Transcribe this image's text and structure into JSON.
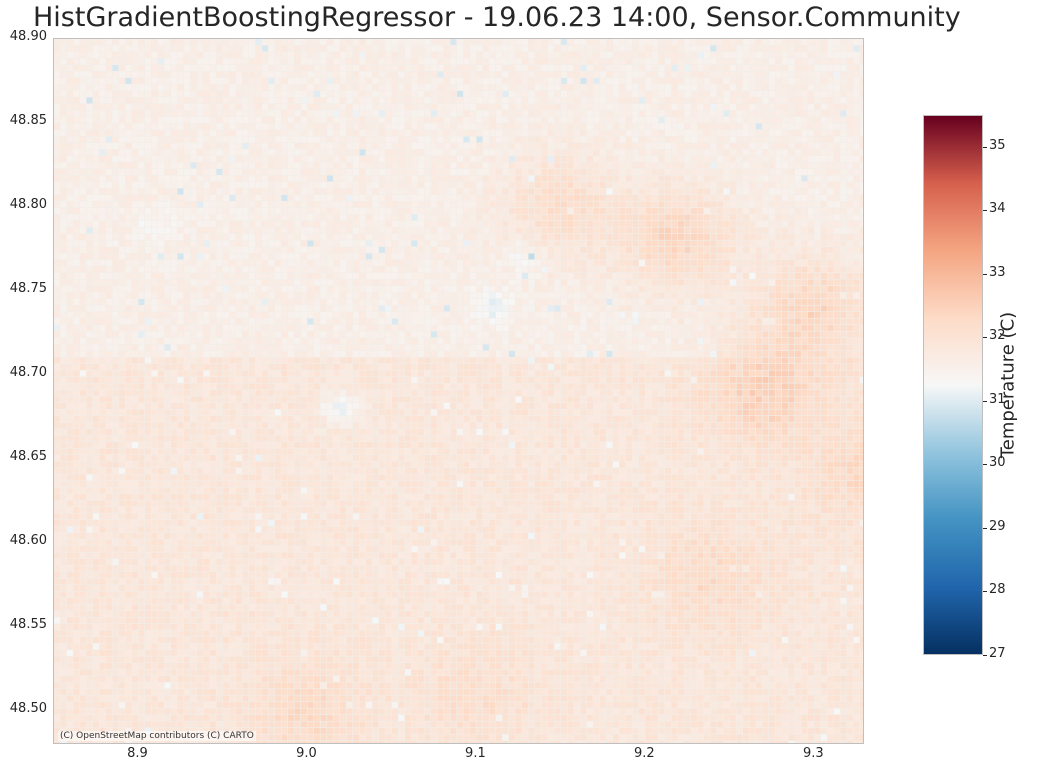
{
  "chart_data": {
    "type": "heatmap",
    "title": "HistGradientBoostingRegressor - 19.06.23 14:00, Sensor.Community",
    "xlabel": "",
    "ylabel": "",
    "xlim": [
      8.85,
      9.33
    ],
    "ylim": [
      48.48,
      48.9
    ],
    "x_ticks": [
      "8.9",
      "9.0",
      "9.1",
      "9.2",
      "9.3"
    ],
    "y_ticks": [
      "48.50",
      "48.55",
      "48.60",
      "48.65",
      "48.70",
      "48.75",
      "48.80",
      "48.85",
      "48.90"
    ],
    "colorbar": {
      "label": "Temperature (C)",
      "range": [
        27,
        35.5
      ],
      "ticks": [
        "27",
        "28",
        "29",
        "30",
        "31",
        "32",
        "33",
        "34",
        "35"
      ],
      "colormap": "RdBu_r"
    },
    "field": {
      "base_north_of_48.71": 31.6,
      "base_south_of_48.71": 31.9,
      "warm_zones": [
        {
          "lon": 9.22,
          "lat": 48.78,
          "temp": 32.4
        },
        {
          "lon": 9.27,
          "lat": 48.69,
          "temp": 32.5
        },
        {
          "lon": 9.3,
          "lat": 48.74,
          "temp": 32.4
        },
        {
          "lon": 9.24,
          "lat": 48.58,
          "temp": 32.3
        },
        {
          "lon": 9.1,
          "lat": 48.51,
          "temp": 32.2
        },
        {
          "lon": 9.0,
          "lat": 48.5,
          "temp": 32.3
        },
        {
          "lon": 9.15,
          "lat": 48.8,
          "temp": 32.2
        },
        {
          "lon": 9.33,
          "lat": 48.64,
          "temp": 32.3
        }
      ],
      "cool_spots": [
        {
          "lon": 9.11,
          "lat": 48.74,
          "temp": 31.1
        },
        {
          "lon": 9.02,
          "lat": 48.68,
          "temp": 31.2
        },
        {
          "lon": 8.91,
          "lat": 48.79,
          "temp": 31.3
        },
        {
          "lon": 9.13,
          "lat": 48.77,
          "temp": 31.2
        }
      ]
    },
    "attribution": "(C) OpenStreetMap contributors (C) CARTO"
  }
}
